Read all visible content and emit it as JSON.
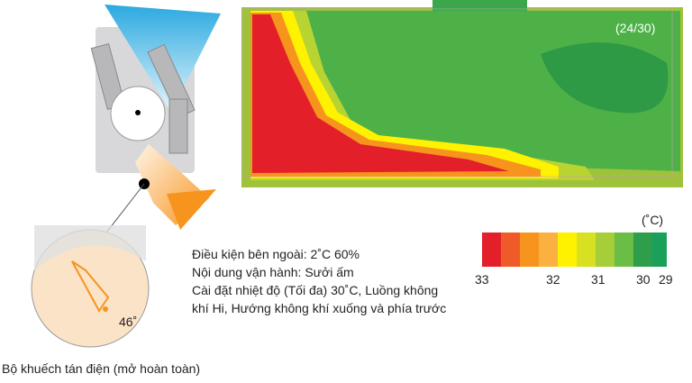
{
  "figure": {
    "label": "(24/30)"
  },
  "legend": {
    "unit": "(˚C)",
    "labels": [
      "33",
      "32",
      "31",
      "30",
      "29"
    ]
  },
  "conditions": [
    "Điều kiện bên ngoài: 2˚C 60%",
    "Nội dung vận hành: Sưởi ấm",
    "Cài đặt  nhiệt độ (Tối đa) 30˚C, Luồng không",
    "khí Hi, Hướng không khí xuống và phía trước"
  ],
  "angle": "46˚",
  "caption": "Bộ khuếch tán điện (mở hoàn toàn)"
}
